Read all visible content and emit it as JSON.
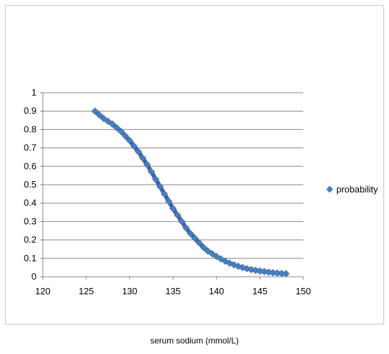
{
  "chart_data": {
    "type": "scatter",
    "title": "",
    "xlabel": "serum sodium (mmol/L)",
    "ylabel": "",
    "xlim": [
      120,
      150
    ],
    "ylim": [
      0,
      1
    ],
    "x_ticks": [
      "120",
      "125",
      "130",
      "135",
      "140",
      "145",
      "150"
    ],
    "y_ticks": [
      "0",
      "0.1",
      "0.2",
      "0.3",
      "0.4",
      "0.5",
      "0.6",
      "0.7",
      "0.8",
      "0.9",
      "1"
    ],
    "grid": "horizontal",
    "legend_position": "right",
    "series": [
      {
        "name": "probability",
        "color": "#4a7ebb",
        "marker": "diamond",
        "x": [
          126,
          126.5,
          127,
          127.5,
          128,
          128.5,
          129,
          129.5,
          130,
          130.5,
          131,
          131.5,
          132,
          132.5,
          133,
          133.5,
          134,
          134.5,
          135,
          135.5,
          136,
          136.5,
          137,
          137.5,
          138,
          138.5,
          139,
          139.5,
          140,
          140.5,
          141,
          141.5,
          142,
          142.5,
          143,
          143.5,
          144,
          144.5,
          145,
          145.5,
          146,
          146.5,
          147,
          147.5,
          148
        ],
        "y": [
          0.9,
          0.88,
          0.86,
          0.845,
          0.83,
          0.81,
          0.79,
          0.765,
          0.74,
          0.71,
          0.68,
          0.645,
          0.61,
          0.57,
          0.53,
          0.49,
          0.45,
          0.41,
          0.37,
          0.335,
          0.3,
          0.265,
          0.235,
          0.21,
          0.185,
          0.16,
          0.14,
          0.125,
          0.11,
          0.097,
          0.085,
          0.074,
          0.065,
          0.057,
          0.05,
          0.044,
          0.039,
          0.035,
          0.031,
          0.028,
          0.025,
          0.022,
          0.02,
          0.018,
          0.016
        ]
      }
    ]
  }
}
